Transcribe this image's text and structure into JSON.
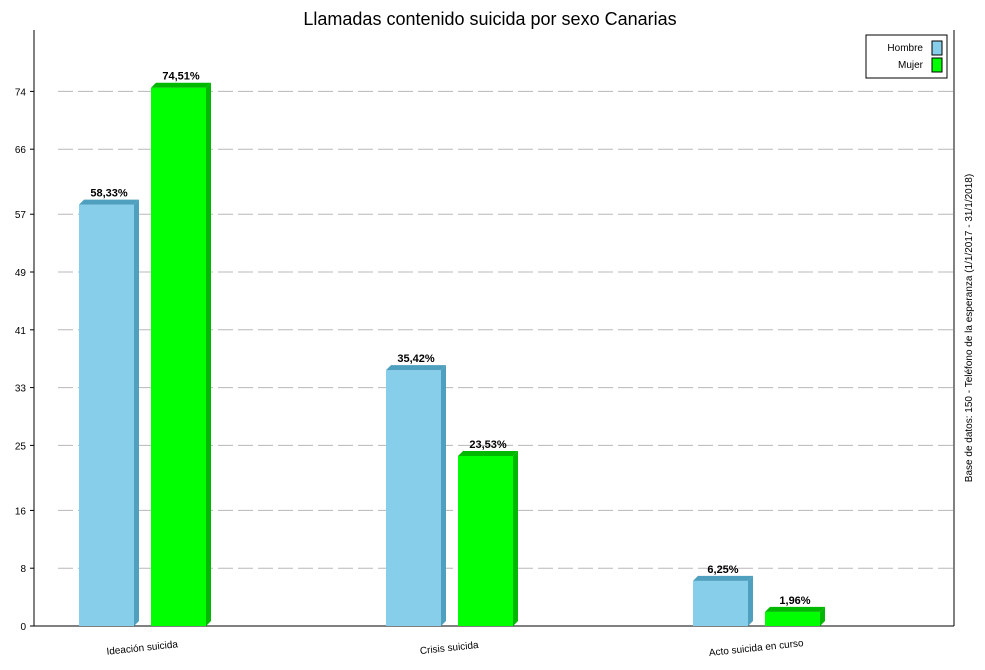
{
  "chart_data": {
    "type": "bar",
    "title": "Llamadas contenido suicida por sexo Canarias",
    "side_note": "Base de datos: 150  -  Teléfono de la esperanza   (1/1/2017 - 31/1/2018)",
    "categories": [
      "Ideación suicida",
      "Crisis suicida",
      "Acto suicida en curso"
    ],
    "series": [
      {
        "name": "Hombre",
        "values": [
          58.33,
          35.42,
          6.25
        ],
        "labels": [
          "58,33%",
          "35,42%",
          "6,25%"
        ],
        "color": "#87ceeb",
        "shade": "#4f9fbf"
      },
      {
        "name": "Mujer",
        "values": [
          74.51,
          23.53,
          1.96
        ],
        "labels": [
          "74,51%",
          "23,53%",
          "1,96%"
        ],
        "color": "#00ff00",
        "shade": "#00b800"
      }
    ],
    "yticks": [
      0,
      8,
      16,
      25,
      33,
      41,
      49,
      57,
      66,
      74
    ],
    "ylim": [
      0,
      82.5
    ],
    "grid": true,
    "legend_position": "top-right"
  }
}
